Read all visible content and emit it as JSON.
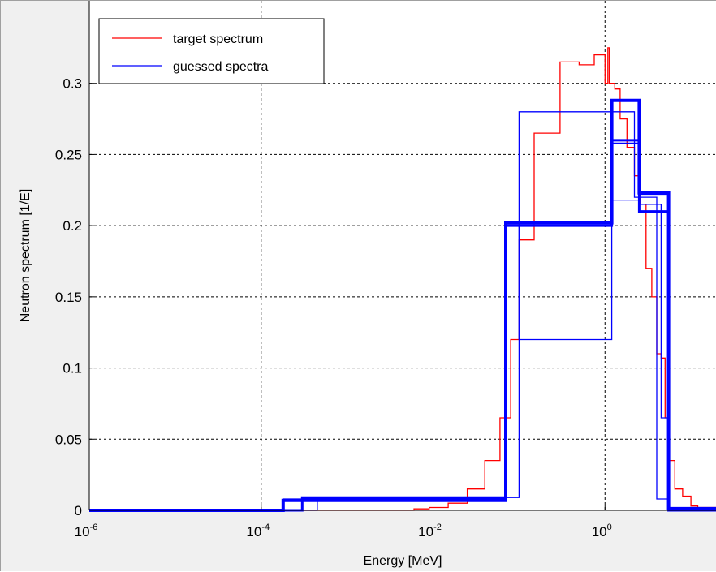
{
  "chart_data": {
    "type": "line",
    "title": "",
    "xlabel": "Energy [MeV]",
    "ylabel": "Neutron spectrum [1/E]",
    "xscale": "log",
    "xlim": [
      1e-06,
      20
    ],
    "ylim": [
      0,
      0.35
    ],
    "grid": true,
    "legend_placement": "top-left",
    "x_ticks": [
      {
        "value": 1e-06,
        "base": "10",
        "exp": "-6"
      },
      {
        "value": 0.0001,
        "base": "10",
        "exp": "-4"
      },
      {
        "value": 0.01,
        "base": "10",
        "exp": "-2"
      },
      {
        "value": 1,
        "base": "10",
        "exp": "0"
      }
    ],
    "y_ticks": [
      {
        "value": 0,
        "label": "0"
      },
      {
        "value": 0.05,
        "label": "0.05"
      },
      {
        "value": 0.1,
        "label": "0.1"
      },
      {
        "value": 0.15,
        "label": "0.15"
      },
      {
        "value": 0.2,
        "label": "0.2"
      },
      {
        "value": 0.25,
        "label": "0.25"
      },
      {
        "value": 0.3,
        "label": "0.3"
      }
    ],
    "series": [
      {
        "name": "target spectrum",
        "color": "#ff0000",
        "width": 1.3,
        "x": [
          1e-06,
          0.006,
          0.006,
          0.009,
          0.009,
          0.015,
          0.015,
          0.025,
          0.025,
          0.04,
          0.04,
          0.06,
          0.06,
          0.08,
          0.08,
          0.1,
          0.1,
          0.15,
          0.15,
          0.3,
          0.3,
          0.5,
          0.5,
          0.75,
          0.75,
          1.0,
          1.0,
          1.08,
          1.08,
          1.12,
          1.12,
          1.3,
          1.3,
          1.5,
          1.5,
          1.8,
          1.8,
          2.2,
          2.2,
          2.6,
          2.6,
          3.0,
          3.0,
          3.5,
          3.5,
          4.0,
          4.0,
          4.5,
          4.5,
          5.0,
          5.0,
          5.5,
          5.5,
          6.5,
          6.5,
          8.0,
          8.0,
          10.0,
          10.0,
          12.0,
          12.0,
          20.0
        ],
        "y": [
          0,
          0,
          0.001,
          0.001,
          0.002,
          0.002,
          0.005,
          0.005,
          0.015,
          0.015,
          0.035,
          0.035,
          0.065,
          0.065,
          0.12,
          0.12,
          0.19,
          0.19,
          0.265,
          0.265,
          0.315,
          0.315,
          0.313,
          0.313,
          0.32,
          0.32,
          0.3,
          0.3,
          0.325,
          0.325,
          0.3,
          0.3,
          0.296,
          0.296,
          0.275,
          0.275,
          0.255,
          0.255,
          0.235,
          0.235,
          0.215,
          0.215,
          0.17,
          0.17,
          0.15,
          0.15,
          0.11,
          0.11,
          0.107,
          0.107,
          0.065,
          0.065,
          0.035,
          0.035,
          0.015,
          0.015,
          0.01,
          0.01,
          0.003,
          0.003,
          0.002,
          0.002
        ]
      },
      {
        "name": "guessed spectra",
        "color": "#0000ff",
        "width": 1.3,
        "x": [
          1e-06,
          0.00018,
          0.00018,
          0.07,
          0.07,
          1.2,
          1.2,
          2.5,
          2.5,
          5.5,
          5.5,
          20
        ],
        "y": [
          0,
          0,
          0.008,
          0.008,
          0.2,
          0.2,
          0.258,
          0.258,
          0.222,
          0.222,
          0.002,
          0.002
        ]
      },
      {
        "color": "#0000ff",
        "width": 4,
        "x": [
          1e-06,
          0.00018,
          0.00018,
          0.07,
          0.07,
          1.2,
          1.2,
          2.5,
          2.5,
          5.5,
          5.5,
          20
        ],
        "y": [
          0,
          0,
          0.007,
          0.007,
          0.202,
          0.202,
          0.288,
          0.288,
          0.223,
          0.223,
          0.001,
          0.001
        ]
      },
      {
        "color": "#0000ff",
        "width": 3,
        "x": [
          1e-06,
          0.0003,
          0.0003,
          0.07,
          0.07,
          1.2,
          1.2,
          2.5,
          2.5,
          5.5,
          5.5,
          20
        ],
        "y": [
          0,
          0,
          0.009,
          0.009,
          0.2,
          0.2,
          0.26,
          0.26,
          0.21,
          0.21,
          0.0,
          0.0
        ]
      },
      {
        "color": "#0000ff",
        "width": 1.3,
        "x": [
          1e-06,
          0.00045,
          0.00045,
          0.1,
          0.1,
          1.2,
          1.2,
          2.5,
          2.5,
          4.5,
          4.5,
          5.5,
          5.5,
          20
        ],
        "y": [
          0,
          0,
          0.009,
          0.009,
          0.28,
          0.28,
          0.218,
          0.218,
          0.215,
          0.215,
          0.065,
          0.065,
          0.0,
          0.0
        ]
      },
      {
        "color": "#0000ff",
        "width": 1.3,
        "x": [
          1e-06,
          0.0003,
          0.0003,
          0.07,
          0.07,
          0.1,
          0.1,
          1.2,
          1.2,
          2.2,
          2.2,
          4.0,
          4.0,
          5.5,
          5.5,
          20
        ],
        "y": [
          0,
          0,
          0.008,
          0.008,
          0.2,
          0.2,
          0.12,
          0.12,
          0.28,
          0.28,
          0.22,
          0.22,
          0.008,
          0.008,
          0.001,
          0.001
        ]
      }
    ]
  }
}
